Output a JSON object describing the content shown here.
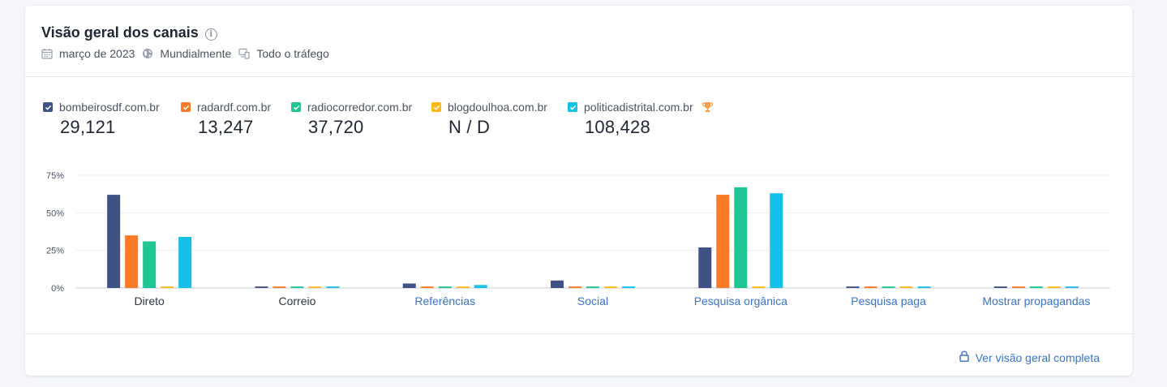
{
  "widget": {
    "title": "Visão geral dos canais",
    "meta": {
      "date": "março de 2023",
      "region": "Mundialmente",
      "traffic": "Todo o tráfego"
    },
    "footer_link": "Ver visão geral completa"
  },
  "legend": [
    {
      "domain": "bombeirosdf.com.br",
      "value": "29,121",
      "color": "#3f5185",
      "winner": false
    },
    {
      "domain": "radardf.com.br",
      "value": "13,247",
      "color": "#fb7a26",
      "winner": false
    },
    {
      "domain": "radiocorredor.com.br",
      "value": "37,720",
      "color": "#1fc592",
      "winner": false
    },
    {
      "domain": "blogdoulhoa.com.br",
      "value": "N / D",
      "color": "#fcbb1b",
      "winner": false
    },
    {
      "domain": "politicadistrital.com.br",
      "value": "108,428",
      "color": "#14c0e8",
      "winner": true
    }
  ],
  "icons": {
    "info": "info-icon",
    "calendar": "calendar-icon",
    "globe": "globe-icon",
    "devices": "devices-icon",
    "trophy": "trophy-icon",
    "lock": "lock-icon",
    "trophy_color": "#f5a04a"
  },
  "chart_data": {
    "type": "bar",
    "categories": [
      "Direto",
      "Correio",
      "Referências",
      "Social",
      "Pesquisa orgânica",
      "Pesquisa paga",
      "Mostrar propagandas"
    ],
    "category_link": [
      false,
      false,
      true,
      true,
      true,
      true,
      true
    ],
    "series": [
      {
        "name": "bombeirosdf.com.br",
        "values": [
          62,
          1,
          3,
          5,
          27,
          1,
          1
        ]
      },
      {
        "name": "radardf.com.br",
        "values": [
          35,
          1,
          1,
          1,
          62,
          1,
          1
        ]
      },
      {
        "name": "radiocorredor.com.br",
        "values": [
          31,
          1,
          1,
          1,
          67,
          1,
          1
        ]
      },
      {
        "name": "blogdoulhoa.com.br",
        "values": [
          1,
          1,
          1,
          1,
          1,
          1,
          1
        ]
      },
      {
        "name": "politicadistrital.com.br",
        "values": [
          34,
          1,
          2,
          1,
          63,
          1,
          1
        ]
      }
    ],
    "yticks": [
      "0%",
      "25%",
      "50%",
      "75%"
    ],
    "ytick_values": [
      0,
      25,
      50,
      75
    ],
    "ylim": [
      0,
      75
    ],
    "grid": true,
    "legend": "top-left"
  }
}
